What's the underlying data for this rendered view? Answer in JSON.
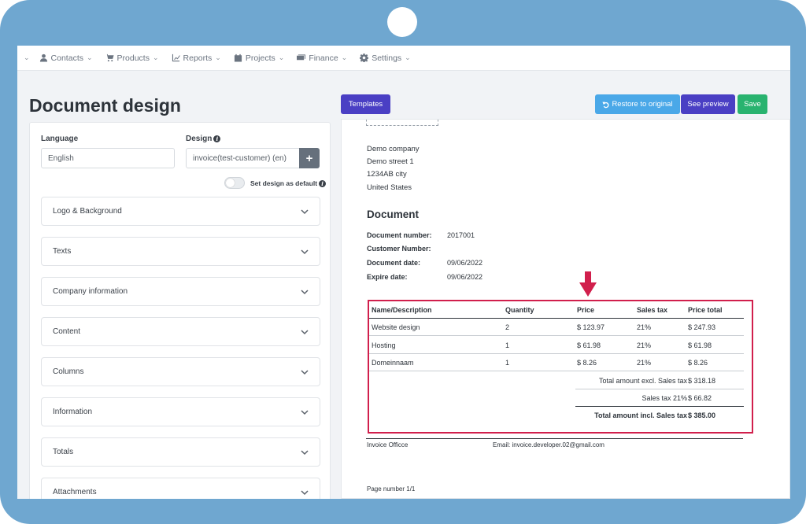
{
  "nav": {
    "items": [
      {
        "label": "Contacts",
        "icon": "user-icon"
      },
      {
        "label": "Products",
        "icon": "cart-icon"
      },
      {
        "label": "Reports",
        "icon": "chart-icon"
      },
      {
        "label": "Projects",
        "icon": "calendar-icon"
      },
      {
        "label": "Finance",
        "icon": "money-icon"
      },
      {
        "label": "Settings",
        "icon": "gear-icon"
      }
    ]
  },
  "page": {
    "title": "Document design"
  },
  "settings": {
    "language_label": "Language",
    "language_value": "English",
    "design_label": "Design",
    "design_value": "invoice(test-customer) (en)",
    "add_label": "+",
    "default_toggle_label": "Set design as default",
    "sections": [
      "Logo & Background",
      "Texts",
      "Company information",
      "Content",
      "Columns",
      "Information",
      "Totals",
      "Attachments"
    ]
  },
  "toolbar": {
    "templates": "Templates",
    "restore": "Restore to original",
    "preview": "See preview",
    "save": "Save"
  },
  "doc": {
    "address": [
      "Demo company",
      "Demo street 1",
      "1234AB city",
      "United States"
    ],
    "heading": "Document",
    "meta": [
      {
        "key": "Document number:",
        "value": "2017001"
      },
      {
        "key": "Customer Number:",
        "value": ""
      },
      {
        "key": "Document date:",
        "value": "09/06/2022"
      },
      {
        "key": "Expire date:",
        "value": "09/06/2022"
      }
    ],
    "table": {
      "headers": [
        "Name/Description",
        "Quantity",
        "Price",
        "Sales tax",
        "Price total"
      ],
      "rows": [
        [
          "Website design",
          "2",
          "$ 123.97",
          "21%",
          "$ 247.93"
        ],
        [
          "Hosting",
          "1",
          "$ 61.98",
          "21%",
          "$ 61.98"
        ],
        [
          "Domeinnaam",
          "1",
          "$ 8.26",
          "21%",
          "$ 8.26"
        ]
      ],
      "totals": [
        {
          "label": "Total amount excl. Sales tax",
          "value": "$ 318.18"
        },
        {
          "label": "Sales tax 21%",
          "value": "$ 66.82"
        },
        {
          "label": "Total amount incl. Sales tax",
          "value": "$ 385.00"
        }
      ]
    },
    "footer_left": "Invoice Officce",
    "footer_right": "Email: invoice.developer.02@gmail.com",
    "page_number": "Page number 1/1"
  },
  "colors": {
    "frame": "#6fa7d0",
    "highlight": "#d11f4c",
    "primary": "#4a3fc4",
    "restore": "#4aa8e8",
    "save": "#29b36f"
  }
}
